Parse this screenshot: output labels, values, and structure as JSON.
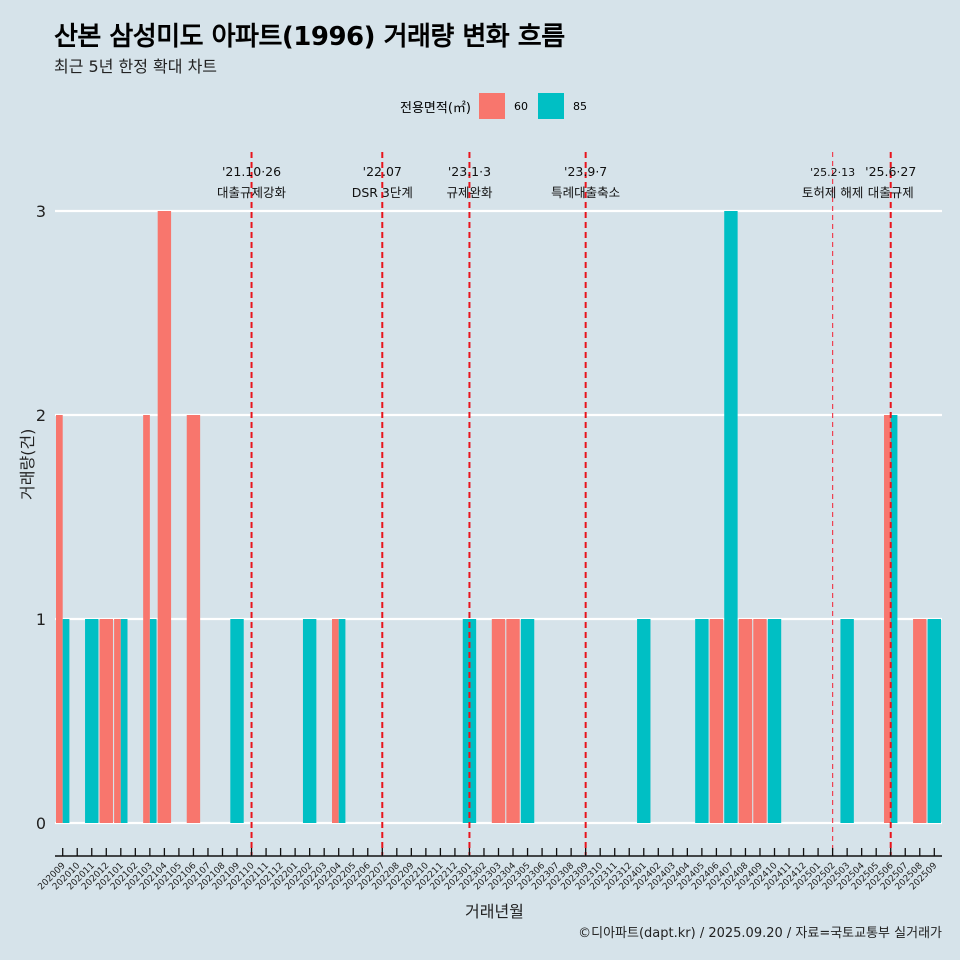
{
  "title": "산본 삼성미도 아파트(1996) 거래량 변화 흐름",
  "subtitle": "최근 5년 한정 확대 차트",
  "caption": "©디아파트(dapt.kr) / 2025.09.20 / 자료=국토교통부 실거래가",
  "chart_data": {
    "type": "bar",
    "title": "산본 삼성미도 아파트(1996) 거래량 변화 흐름",
    "subtitle": "최근 5년 한정 확대 차트",
    "xlabel": "거래년월",
    "ylabel": "거래량(건)",
    "ylim": [
      0,
      3
    ],
    "yticks": [
      0,
      1,
      2,
      3
    ],
    "grid": true,
    "legend": {
      "title": "전용면적(㎡)",
      "position": "top"
    },
    "categories": [
      "202009",
      "202010",
      "202011",
      "202012",
      "202101",
      "202102",
      "202103",
      "202104",
      "202105",
      "202106",
      "202107",
      "202108",
      "202109",
      "202110",
      "202111",
      "202112",
      "202201",
      "202202",
      "202203",
      "202204",
      "202205",
      "202206",
      "202207",
      "202208",
      "202209",
      "202210",
      "202211",
      "202212",
      "202301",
      "202302",
      "202303",
      "202304",
      "202305",
      "202306",
      "202307",
      "202308",
      "202309",
      "202310",
      "202311",
      "202312",
      "202401",
      "202402",
      "202403",
      "202404",
      "202405",
      "202406",
      "202407",
      "202408",
      "202409",
      "202410",
      "202411",
      "202412",
      "202501",
      "202502",
      "202503",
      "202504",
      "202505",
      "202506",
      "202507",
      "202508",
      "202509"
    ],
    "series": [
      {
        "name": "60",
        "color": "#F8766D",
        "values": [
          2,
          0,
          0,
          1,
          1,
          0,
          2,
          3,
          0,
          2,
          0,
          0,
          0,
          0,
          0,
          0,
          0,
          0,
          0,
          1,
          0,
          0,
          0,
          0,
          0,
          0,
          0,
          0,
          0,
          0,
          1,
          1,
          0,
          0,
          0,
          0,
          0,
          0,
          0,
          0,
          0,
          0,
          0,
          0,
          0,
          1,
          0,
          1,
          1,
          0,
          0,
          0,
          0,
          0,
          0,
          0,
          0,
          2,
          0,
          1,
          0
        ]
      },
      {
        "name": "85",
        "color": "#00BFC4",
        "values": [
          1,
          0,
          1,
          0,
          1,
          0,
          1,
          0,
          0,
          0,
          0,
          0,
          1,
          0,
          0,
          0,
          0,
          1,
          0,
          1,
          0,
          0,
          0,
          0,
          0,
          0,
          0,
          0,
          1,
          0,
          0,
          0,
          1,
          0,
          0,
          0,
          0,
          0,
          0,
          0,
          1,
          0,
          0,
          0,
          1,
          0,
          3,
          0,
          0,
          1,
          0,
          0,
          0,
          0,
          1,
          0,
          0,
          2,
          0,
          0,
          1
        ]
      }
    ],
    "annotations": [
      {
        "month": "202110",
        "date": "'21.10·26",
        "label": "대출규제강화",
        "style": "major"
      },
      {
        "month": "202207",
        "date": "'22.07",
        "label": "DSR 3단계",
        "style": "major"
      },
      {
        "month": "202301",
        "date": "'23.1·3",
        "label": "규제완화",
        "style": "major"
      },
      {
        "month": "202309",
        "date": "'23.9·7",
        "label": "특례대출축소",
        "style": "major"
      },
      {
        "month": "202502",
        "date": "'25.2·13",
        "label": "토허제 해제",
        "style": "minor"
      },
      {
        "month": "202506",
        "date": "'25.6·27",
        "label": "대출규제",
        "style": "major"
      }
    ]
  }
}
